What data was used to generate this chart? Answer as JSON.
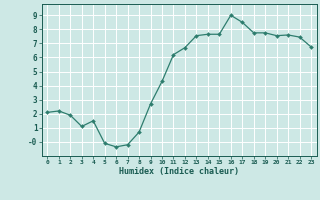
{
  "x": [
    0,
    1,
    2,
    3,
    4,
    5,
    6,
    7,
    8,
    9,
    10,
    11,
    12,
    13,
    14,
    15,
    16,
    17,
    18,
    19,
    20,
    21,
    22,
    23
  ],
  "y": [
    2.1,
    2.2,
    1.9,
    1.1,
    1.5,
    -0.1,
    -0.35,
    -0.2,
    0.7,
    2.7,
    4.3,
    6.2,
    6.7,
    7.55,
    7.65,
    7.65,
    9.0,
    8.5,
    7.75,
    7.75,
    7.55,
    7.6,
    7.45,
    6.75
  ],
  "line_color": "#2e7d6e",
  "marker": "D",
  "marker_size": 2.0,
  "bg_color": "#cde8e5",
  "grid_color": "#ffffff",
  "xlabel": "Humidex (Indice chaleur)",
  "xlabel_color": "#1a5c52",
  "tick_color": "#1a5c52",
  "xlim": [
    -0.5,
    23.5
  ],
  "ylim": [
    -1.0,
    9.8
  ],
  "yticks": [
    0,
    1,
    2,
    3,
    4,
    5,
    6,
    7,
    8,
    9
  ],
  "ytick_labels": [
    "-0",
    "1",
    "2",
    "3",
    "4",
    "5",
    "6",
    "7",
    "8",
    "9"
  ],
  "xticks": [
    0,
    1,
    2,
    3,
    4,
    5,
    6,
    7,
    8,
    9,
    10,
    11,
    12,
    13,
    14,
    15,
    16,
    17,
    18,
    19,
    20,
    21,
    22,
    23
  ],
  "figsize": [
    3.2,
    2.0
  ],
  "dpi": 100
}
